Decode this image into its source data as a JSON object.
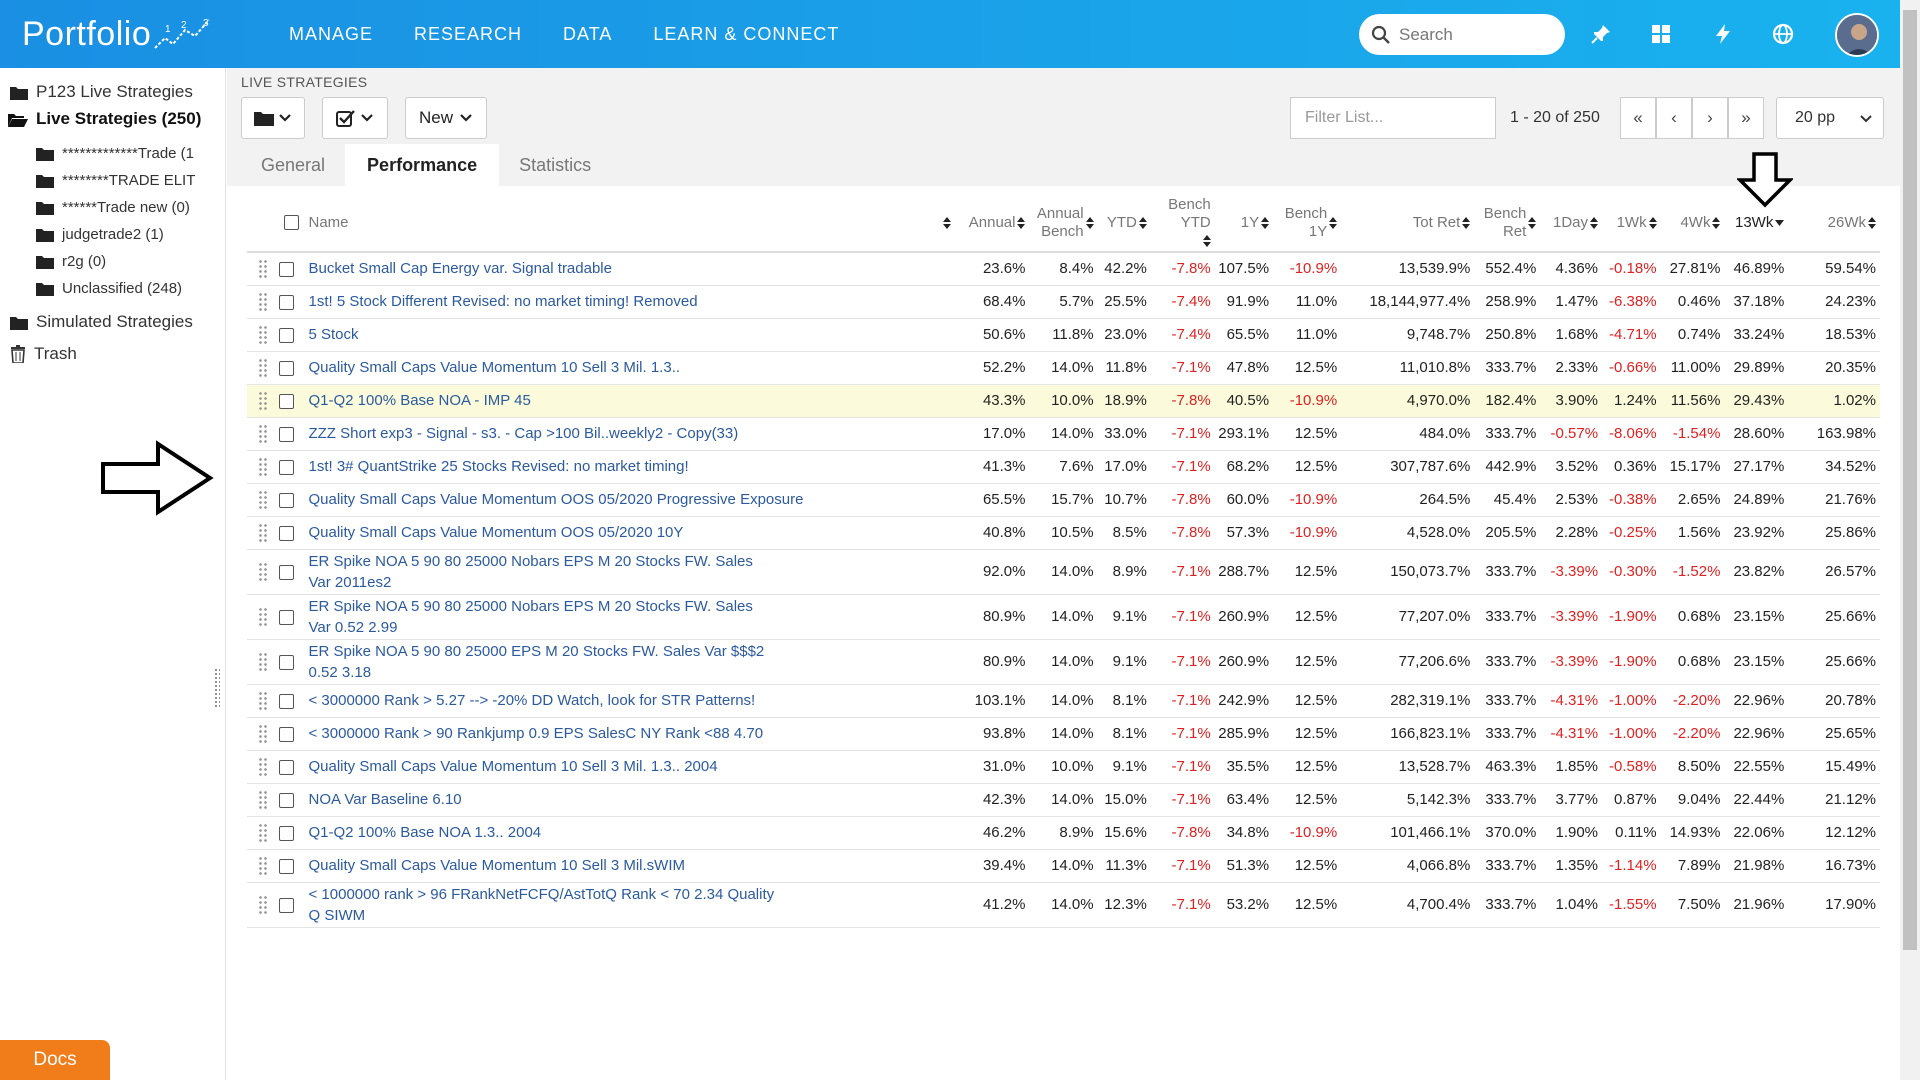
{
  "app": {
    "logo_text": "Portfolio",
    "nav": [
      "MANAGE",
      "RESEARCH",
      "DATA",
      "LEARN & CONNECT"
    ],
    "search_placeholder": "Search",
    "icons": [
      "pin-icon",
      "grid-icon",
      "lightning-icon",
      "globe-icon"
    ]
  },
  "sidebar": {
    "items": [
      {
        "label": "P123 Live Strategies",
        "bold": false,
        "level": 0
      },
      {
        "label": "Live Strategies (250)",
        "bold": true,
        "level": 0
      },
      {
        "label": "*************Trade (1",
        "bold": false,
        "level": 1
      },
      {
        "label": "********TRADE ELIT",
        "bold": false,
        "level": 1
      },
      {
        "label": "******Trade new (0)",
        "bold": false,
        "level": 1
      },
      {
        "label": "judgetrade2 (1)",
        "bold": false,
        "level": 1
      },
      {
        "label": "r2g (0)",
        "bold": false,
        "level": 1
      },
      {
        "label": "Unclassified (248)",
        "bold": false,
        "level": 1
      },
      {
        "label": "Simulated Strategies",
        "bold": false,
        "level": 0
      },
      {
        "label": "Trash",
        "bold": false,
        "level": 0
      }
    ],
    "docs_label": "Docs"
  },
  "toolbar": {
    "section_label": "LIVE STRATEGIES",
    "new_label": "New",
    "filter_placeholder": "Filter List...",
    "pager_text": "1 - 20 of 250",
    "pager_buttons": [
      "«",
      "‹",
      "›",
      "»"
    ],
    "per_page": "20 pp"
  },
  "tabs": [
    {
      "label": "General",
      "active": false
    },
    {
      "label": "Performance",
      "active": true
    },
    {
      "label": "Statistics",
      "active": false
    }
  ],
  "table": {
    "columns": [
      {
        "key": "name",
        "label": "Name"
      },
      {
        "key": "annual",
        "label": "Annual"
      },
      {
        "key": "annual_bench",
        "label": "Annual Bench"
      },
      {
        "key": "ytd",
        "label": "YTD"
      },
      {
        "key": "bench_ytd",
        "label": "Bench YTD"
      },
      {
        "key": "y1",
        "label": "1Y"
      },
      {
        "key": "bench_1y",
        "label": "Bench 1Y"
      },
      {
        "key": "tot_ret",
        "label": "Tot Ret"
      },
      {
        "key": "bench_ret",
        "label": "Bench Ret"
      },
      {
        "key": "d1",
        "label": "1Day"
      },
      {
        "key": "wk1",
        "label": "1Wk"
      },
      {
        "key": "wk4",
        "label": "4Wk"
      },
      {
        "key": "wk13",
        "label": "13Wk"
      },
      {
        "key": "wk26",
        "label": "26Wk"
      }
    ],
    "rows": [
      {
        "name": "Bucket Small Cap Energy var. Signal tradable",
        "v": [
          "23.6%",
          "8.4%",
          "42.2%",
          "-7.8%",
          "107.5%",
          "-10.9%",
          "13,539.9%",
          "552.4%",
          "4.36%",
          "-0.18%",
          "27.81%",
          "46.89%",
          "59.54%"
        ]
      },
      {
        "name": "1st! 5 Stock Different Revised: no market timing! Removed",
        "v": [
          "68.4%",
          "5.7%",
          "25.5%",
          "-7.4%",
          "91.9%",
          "11.0%",
          "18,144,977.4%",
          "258.9%",
          "1.47%",
          "-6.38%",
          "0.46%",
          "37.18%",
          "24.23%"
        ]
      },
      {
        "name": "5 Stock",
        "v": [
          "50.6%",
          "11.8%",
          "23.0%",
          "-7.4%",
          "65.5%",
          "11.0%",
          "9,748.7%",
          "250.8%",
          "1.68%",
          "-4.71%",
          "0.74%",
          "33.24%",
          "18.53%"
        ]
      },
      {
        "name": "Quality Small Caps Value Momentum 10 Sell 3 Mil. 1.3..",
        "v": [
          "52.2%",
          "14.0%",
          "11.8%",
          "-7.1%",
          "47.8%",
          "12.5%",
          "11,010.8%",
          "333.7%",
          "2.33%",
          "-0.66%",
          "11.00%",
          "29.89%",
          "20.35%"
        ]
      },
      {
        "name": "Q1-Q2 100% Base NOA - IMP 45",
        "v": [
          "43.3%",
          "10.0%",
          "18.9%",
          "-7.8%",
          "40.5%",
          "-10.9%",
          "4,970.0%",
          "182.4%",
          "3.90%",
          "1.24%",
          "11.56%",
          "29.43%",
          "1.02%"
        ],
        "hl": true
      },
      {
        "name": "ZZZ Short exp3 - Signal - s3. - Cap >100 Bil..weekly2 - Copy(33)",
        "v": [
          "17.0%",
          "14.0%",
          "33.0%",
          "-7.1%",
          "293.1%",
          "12.5%",
          "484.0%",
          "333.7%",
          "-0.57%",
          "-8.06%",
          "-1.54%",
          "28.60%",
          "163.98%"
        ]
      },
      {
        "name": "1st! 3# QuantStrike 25 Stocks Revised: no market timing!",
        "v": [
          "41.3%",
          "7.6%",
          "17.0%",
          "-7.1%",
          "68.2%",
          "12.5%",
          "307,787.6%",
          "442.9%",
          "3.52%",
          "0.36%",
          "15.17%",
          "27.17%",
          "34.52%"
        ]
      },
      {
        "name": "Quality Small Caps Value Momentum OOS 05/2020 Progressive Exposure",
        "v": [
          "65.5%",
          "15.7%",
          "10.7%",
          "-7.8%",
          "60.0%",
          "-10.9%",
          "264.5%",
          "45.4%",
          "2.53%",
          "-0.38%",
          "2.65%",
          "24.89%",
          "21.76%"
        ]
      },
      {
        "name": "Quality Small Caps Value Momentum OOS 05/2020 10Y",
        "v": [
          "40.8%",
          "10.5%",
          "8.5%",
          "-7.8%",
          "57.3%",
          "-10.9%",
          "4,528.0%",
          "205.5%",
          "2.28%",
          "-0.25%",
          "1.56%",
          "23.92%",
          "25.86%"
        ]
      },
      {
        "name": "ER Spike NOA 5 90 80 25000 Nobars EPS M 20 Stocks FW. Sales Var 2011es2",
        "v": [
          "92.0%",
          "14.0%",
          "8.9%",
          "-7.1%",
          "288.7%",
          "12.5%",
          "150,073.7%",
          "333.7%",
          "-3.39%",
          "-0.30%",
          "-1.52%",
          "23.82%",
          "26.57%"
        ],
        "tall": true
      },
      {
        "name": "ER Spike NOA 5 90 80 25000 Nobars EPS M 20 Stocks FW. Sales Var 0.52 2.99",
        "v": [
          "80.9%",
          "14.0%",
          "9.1%",
          "-7.1%",
          "260.9%",
          "12.5%",
          "77,207.0%",
          "333.7%",
          "-3.39%",
          "-1.90%",
          "0.68%",
          "23.15%",
          "25.66%"
        ],
        "tall": true
      },
      {
        "name": "ER Spike NOA 5 90 80 25000 EPS M 20 Stocks FW. Sales Var $$$2 0.52 3.18",
        "v": [
          "80.9%",
          "14.0%",
          "9.1%",
          "-7.1%",
          "260.9%",
          "12.5%",
          "77,206.6%",
          "333.7%",
          "-3.39%",
          "-1.90%",
          "0.68%",
          "23.15%",
          "25.66%"
        ],
        "tall": true
      },
      {
        "name": "< 3000000 Rank > 5.27 --> -20% DD Watch, look for STR Patterns!",
        "v": [
          "103.1%",
          "14.0%",
          "8.1%",
          "-7.1%",
          "242.9%",
          "12.5%",
          "282,319.1%",
          "333.7%",
          "-4.31%",
          "-1.00%",
          "-2.20%",
          "22.96%",
          "20.78%"
        ]
      },
      {
        "name": "< 3000000 Rank > 90 Rankjump 0.9 EPS SalesC NY Rank <88 4.70",
        "v": [
          "93.8%",
          "14.0%",
          "8.1%",
          "-7.1%",
          "285.9%",
          "12.5%",
          "166,823.1%",
          "333.7%",
          "-4.31%",
          "-1.00%",
          "-2.20%",
          "22.96%",
          "25.65%"
        ]
      },
      {
        "name": "Quality Small Caps Value Momentum 10 Sell 3 Mil. 1.3.. 2004",
        "v": [
          "31.0%",
          "10.0%",
          "9.1%",
          "-7.1%",
          "35.5%",
          "12.5%",
          "13,528.7%",
          "463.3%",
          "1.85%",
          "-0.58%",
          "8.50%",
          "22.55%",
          "15.49%"
        ]
      },
      {
        "name": "NOA Var Baseline 6.10",
        "v": [
          "42.3%",
          "14.0%",
          "15.0%",
          "-7.1%",
          "63.4%",
          "12.5%",
          "5,142.3%",
          "333.7%",
          "3.77%",
          "0.87%",
          "9.04%",
          "22.44%",
          "21.12%"
        ]
      },
      {
        "name": "Q1-Q2 100% Base NOA 1.3.. 2004",
        "v": [
          "46.2%",
          "8.9%",
          "15.6%",
          "-7.8%",
          "34.8%",
          "-10.9%",
          "101,466.1%",
          "370.0%",
          "1.90%",
          "0.11%",
          "14.93%",
          "22.06%",
          "12.12%"
        ]
      },
      {
        "name": "Quality Small Caps Value Momentum 10 Sell 3 Mil.sWIM",
        "v": [
          "39.4%",
          "14.0%",
          "11.3%",
          "-7.1%",
          "51.3%",
          "12.5%",
          "4,066.8%",
          "333.7%",
          "1.35%",
          "-1.14%",
          "7.89%",
          "21.98%",
          "16.73%"
        ]
      },
      {
        "name": "< 1000000 rank > 96 FRankNetFCFQ/AstTotQ Rank < 70 2.34 Quality Q SIWM",
        "v": [
          "41.2%",
          "14.0%",
          "12.3%",
          "-7.1%",
          "53.2%",
          "12.5%",
          "4,700.4%",
          "333.7%",
          "1.04%",
          "-1.55%",
          "7.50%",
          "21.96%",
          "17.90%"
        ],
        "tall": true
      }
    ]
  }
}
